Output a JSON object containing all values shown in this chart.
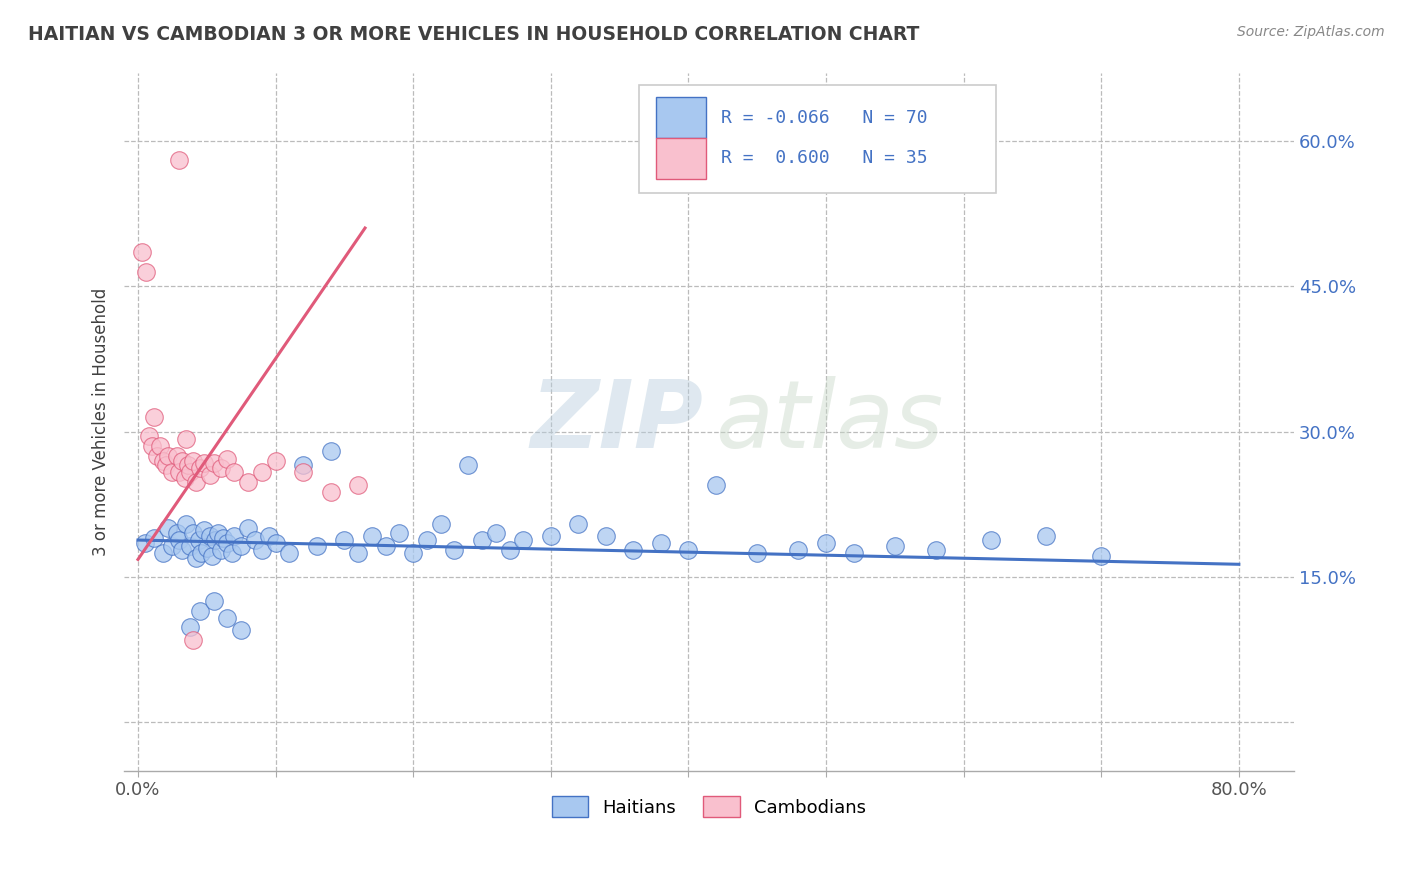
{
  "title": "HAITIAN VS CAMBODIAN 3 OR MORE VEHICLES IN HOUSEHOLD CORRELATION CHART",
  "source": "Source: ZipAtlas.com",
  "ylabel": "3 or more Vehicles in Household",
  "x_ticks": [
    0.0,
    0.1,
    0.2,
    0.3,
    0.4,
    0.5,
    0.6,
    0.7,
    0.8
  ],
  "y_ticks": [
    0.0,
    0.15,
    0.3,
    0.45,
    0.6
  ],
  "xlim": [
    -0.01,
    0.84
  ],
  "ylim": [
    -0.05,
    0.67
  ],
  "watermark_zip": "ZIP",
  "watermark_atlas": "atlas",
  "legend_r1": "R = -0.066",
  "legend_n1": "N = 70",
  "legend_r2": "R =  0.600",
  "legend_n2": "N = 35",
  "legend_label1": "Haitians",
  "legend_label2": "Cambodians",
  "color_haitian_fill": "#A8C8F0",
  "color_haitian_edge": "#4472C4",
  "color_cambodian_fill": "#F9C0CE",
  "color_cambodian_edge": "#E05A7A",
  "color_haitian_line": "#4472C4",
  "color_cambodian_line": "#E05A7A",
  "background_color": "#FFFFFF",
  "grid_color": "#BBBBBB",
  "title_color": "#404040",
  "haitian_x": [
    0.005,
    0.012,
    0.018,
    0.022,
    0.025,
    0.028,
    0.03,
    0.032,
    0.035,
    0.038,
    0.04,
    0.042,
    0.044,
    0.046,
    0.048,
    0.05,
    0.052,
    0.054,
    0.056,
    0.058,
    0.06,
    0.062,
    0.065,
    0.068,
    0.07,
    0.075,
    0.08,
    0.085,
    0.09,
    0.095,
    0.1,
    0.11,
    0.12,
    0.13,
    0.14,
    0.15,
    0.16,
    0.17,
    0.18,
    0.19,
    0.2,
    0.21,
    0.22,
    0.23,
    0.24,
    0.25,
    0.26,
    0.27,
    0.28,
    0.3,
    0.32,
    0.34,
    0.36,
    0.38,
    0.4,
    0.42,
    0.45,
    0.48,
    0.5,
    0.52,
    0.55,
    0.58,
    0.62,
    0.66,
    0.7,
    0.038,
    0.045,
    0.055,
    0.065,
    0.075
  ],
  "haitian_y": [
    0.185,
    0.19,
    0.175,
    0.2,
    0.182,
    0.195,
    0.188,
    0.178,
    0.205,
    0.182,
    0.195,
    0.17,
    0.188,
    0.175,
    0.198,
    0.18,
    0.192,
    0.172,
    0.188,
    0.195,
    0.178,
    0.19,
    0.185,
    0.175,
    0.192,
    0.182,
    0.2,
    0.188,
    0.178,
    0.192,
    0.185,
    0.175,
    0.265,
    0.182,
    0.28,
    0.188,
    0.175,
    0.192,
    0.182,
    0.195,
    0.175,
    0.188,
    0.205,
    0.178,
    0.265,
    0.188,
    0.195,
    0.178,
    0.188,
    0.192,
    0.205,
    0.192,
    0.178,
    0.185,
    0.178,
    0.245,
    0.175,
    0.178,
    0.185,
    0.175,
    0.182,
    0.178,
    0.188,
    0.192,
    0.172,
    0.098,
    0.115,
    0.125,
    0.108,
    0.095
  ],
  "cambodian_x": [
    0.003,
    0.006,
    0.008,
    0.01,
    0.012,
    0.014,
    0.016,
    0.018,
    0.02,
    0.022,
    0.025,
    0.028,
    0.03,
    0.032,
    0.034,
    0.036,
    0.038,
    0.04,
    0.042,
    0.045,
    0.048,
    0.052,
    0.055,
    0.06,
    0.065,
    0.07,
    0.08,
    0.09,
    0.1,
    0.12,
    0.14,
    0.16,
    0.03,
    0.035,
    0.04
  ],
  "cambodian_y": [
    0.485,
    0.465,
    0.295,
    0.285,
    0.315,
    0.275,
    0.285,
    0.27,
    0.265,
    0.275,
    0.258,
    0.275,
    0.258,
    0.27,
    0.252,
    0.265,
    0.258,
    0.27,
    0.248,
    0.262,
    0.268,
    0.255,
    0.268,
    0.262,
    0.272,
    0.258,
    0.248,
    0.258,
    0.27,
    0.258,
    0.238,
    0.245,
    0.58,
    0.292,
    0.085
  ],
  "h_trend_x": [
    0.0,
    0.8
  ],
  "h_trend_y": [
    0.188,
    0.163
  ],
  "c_trend_x": [
    0.0,
    0.165
  ],
  "c_trend_y": [
    0.168,
    0.51
  ]
}
